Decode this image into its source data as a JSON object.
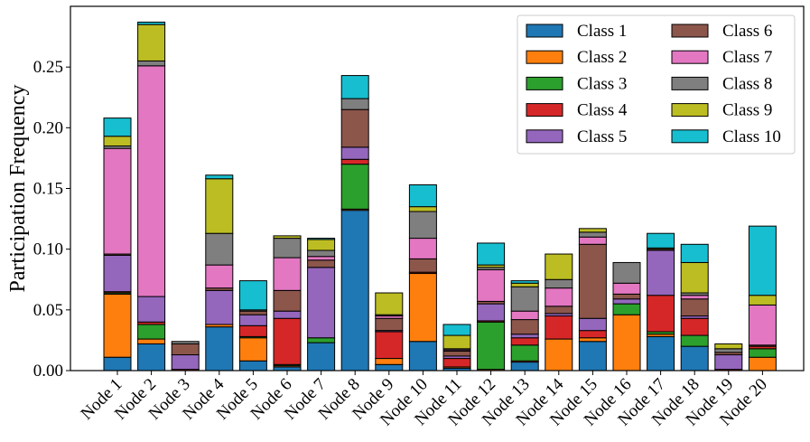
{
  "chart_data": {
    "type": "bar",
    "stacked": true,
    "title": "",
    "xlabel": "",
    "ylabel": "Participation Frequency",
    "ylim": [
      0,
      0.3
    ],
    "yticks": [
      0.0,
      0.05,
      0.1,
      0.15,
      0.2,
      0.25
    ],
    "ytick_labels": [
      "0.00",
      "0.05",
      "0.10",
      "0.15",
      "0.20",
      "0.25"
    ],
    "grid": false,
    "legend_position": "top-right",
    "categories": [
      "Node 1",
      "Node 2",
      "Node 3",
      "Node 4",
      "Node 5",
      "Node 6",
      "Node 7",
      "Node 8",
      "Node 9",
      "Node 10",
      "Node 11",
      "Node 12",
      "Node 13",
      "Node 14",
      "Node 15",
      "Node 16",
      "Node 17",
      "Node 18",
      "Node 19",
      "Node 20"
    ],
    "series": [
      {
        "name": "Class 1",
        "color": "#1f77b4",
        "values": [
          0.011,
          0.022,
          0.0,
          0.036,
          0.008,
          0.003,
          0.023,
          0.132,
          0.005,
          0.024,
          0.002,
          0.0,
          0.007,
          0.0,
          0.024,
          0.0,
          0.028,
          0.02,
          0.0,
          0.0
        ]
      },
      {
        "name": "Class 2",
        "color": "#ff7f0e",
        "values": [
          0.052,
          0.004,
          0.0,
          0.002,
          0.019,
          0.001,
          0.0,
          0.001,
          0.005,
          0.056,
          0.001,
          0.001,
          0.001,
          0.026,
          0.003,
          0.046,
          0.002,
          0.0,
          0.0,
          0.011
        ]
      },
      {
        "name": "Class 3",
        "color": "#2ca02c",
        "values": [
          0.001,
          0.012,
          0.0,
          0.0,
          0.001,
          0.001,
          0.004,
          0.037,
          0.0,
          0.0,
          0.0,
          0.039,
          0.013,
          0.0,
          0.0,
          0.009,
          0.002,
          0.009,
          0.0,
          0.007
        ]
      },
      {
        "name": "Class 4",
        "color": "#d62728",
        "values": [
          0.001,
          0.002,
          0.001,
          0.0,
          0.009,
          0.038,
          0.0,
          0.004,
          0.022,
          0.001,
          0.007,
          0.001,
          0.006,
          0.019,
          0.006,
          0.0,
          0.03,
          0.014,
          0.001,
          0.002
        ]
      },
      {
        "name": "Class 5",
        "color": "#9467bd",
        "values": [
          0.03,
          0.021,
          0.012,
          0.028,
          0.009,
          0.006,
          0.058,
          0.01,
          0.001,
          0.0,
          0.002,
          0.014,
          0.003,
          0.002,
          0.01,
          0.004,
          0.037,
          0.002,
          0.012,
          0.0
        ]
      },
      {
        "name": "Class 6",
        "color": "#8c564b",
        "values": [
          0.001,
          0.0,
          0.009,
          0.002,
          0.003,
          0.017,
          0.006,
          0.031,
          0.01,
          0.011,
          0.004,
          0.002,
          0.012,
          0.006,
          0.061,
          0.004,
          0.001,
          0.014,
          0.002,
          0.001
        ]
      },
      {
        "name": "Class 7",
        "color": "#e377c2",
        "values": [
          0.087,
          0.19,
          0.0,
          0.019,
          0.0,
          0.027,
          0.003,
          0.0,
          0.002,
          0.017,
          0.001,
          0.026,
          0.007,
          0.015,
          0.006,
          0.009,
          0.0,
          0.003,
          0.0,
          0.033
        ]
      },
      {
        "name": "Class 8",
        "color": "#7f7f7f",
        "values": [
          0.002,
          0.004,
          0.002,
          0.026,
          0.001,
          0.016,
          0.005,
          0.009,
          0.001,
          0.022,
          0.001,
          0.002,
          0.02,
          0.007,
          0.004,
          0.017,
          0.0,
          0.002,
          0.003,
          0.0
        ]
      },
      {
        "name": "Class 9",
        "color": "#bcbd22",
        "values": [
          0.008,
          0.03,
          0.0,
          0.045,
          0.0,
          0.002,
          0.009,
          0.0,
          0.018,
          0.004,
          0.011,
          0.002,
          0.003,
          0.021,
          0.003,
          0.0,
          0.001,
          0.025,
          0.004,
          0.008
        ]
      },
      {
        "name": "Class 10",
        "color": "#17becf",
        "values": [
          0.015,
          0.002,
          0.0,
          0.003,
          0.024,
          0.0,
          0.001,
          0.019,
          0.0,
          0.018,
          0.009,
          0.018,
          0.002,
          0.0,
          0.0,
          0.0,
          0.012,
          0.015,
          0.0,
          0.057
        ]
      }
    ]
  }
}
